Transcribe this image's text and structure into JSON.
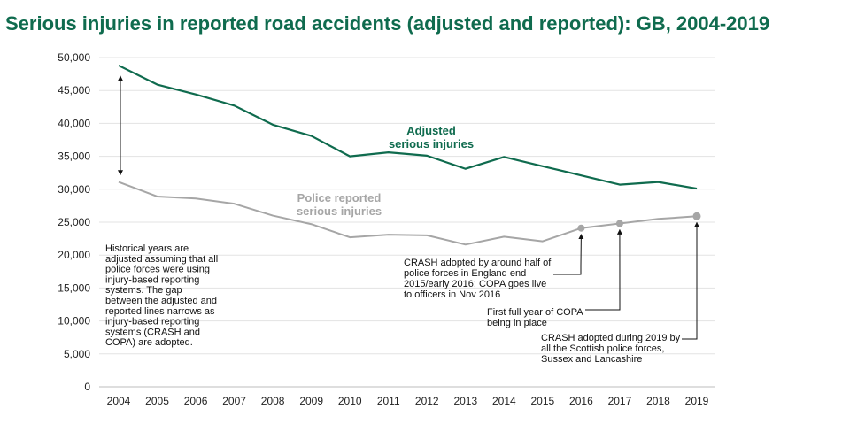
{
  "chart_data": {
    "type": "line",
    "title": "Serious injuries in reported road accidents (adjusted and reported): GB, 2004-2019",
    "x": [
      2004,
      2005,
      2006,
      2007,
      2008,
      2009,
      2010,
      2011,
      2012,
      2013,
      2014,
      2015,
      2016,
      2017,
      2018,
      2019
    ],
    "x_tick_labels": [
      "2004",
      "2005",
      "2006",
      "2007",
      "2008",
      "2009",
      "2010",
      "2011",
      "2012",
      "2013",
      "2014",
      "2015",
      "2016",
      "2017",
      "2018",
      "2019"
    ],
    "ylim": [
      0,
      50000
    ],
    "y_ticks": [
      0,
      5000,
      10000,
      15000,
      20000,
      25000,
      30000,
      35000,
      40000,
      45000,
      50000
    ],
    "y_tick_labels": [
      "0",
      "5,000",
      "10,000",
      "15,000",
      "20,000",
      "25,000",
      "30,000",
      "35,000",
      "40,000",
      "45,000",
      "50,000"
    ],
    "grid": "horizontal",
    "series": [
      {
        "label_lines": [
          "Adjusted",
          "serious injuries"
        ],
        "color": "#0f6b4e",
        "values": [
          48800,
          45900,
          44400,
          42700,
          39800,
          38100,
          35000,
          35600,
          35100,
          33100,
          34900,
          33500,
          32100,
          30700,
          31100,
          30100
        ]
      },
      {
        "label_lines": [
          "Police reported",
          "serious injuries"
        ],
        "color": "#a6a6a6",
        "values": [
          31100,
          28900,
          28600,
          27800,
          26000,
          24700,
          22700,
          23100,
          23000,
          21600,
          22800,
          22100,
          24100,
          24800,
          25500,
          25900
        ]
      }
    ],
    "annotations": {
      "historical": {
        "lines": [
          "Historical years are",
          "adjusted assuming that all",
          "police forces were using",
          "injury-based reporting",
          "systems. The gap",
          "between the adjusted and",
          "reported lines narrows as",
          "injury-based reporting",
          "systems (CRASH and",
          "COPA) are adopted."
        ]
      },
      "crash_2016": {
        "year": 2016,
        "lines": [
          "CRASH adopted by around half of",
          "police forces in England end",
          "2015/early 2016; COPA goes live",
          "to officers in Nov 2016"
        ]
      },
      "copa_2017": {
        "year": 2017,
        "lines": [
          "First full year of COPA",
          "being in place"
        ]
      },
      "crash_2019": {
        "year": 2019,
        "lines": [
          "CRASH adopted during 2019 by",
          "all the Scottish police forces,",
          "Sussex and Lancashire"
        ]
      }
    }
  }
}
